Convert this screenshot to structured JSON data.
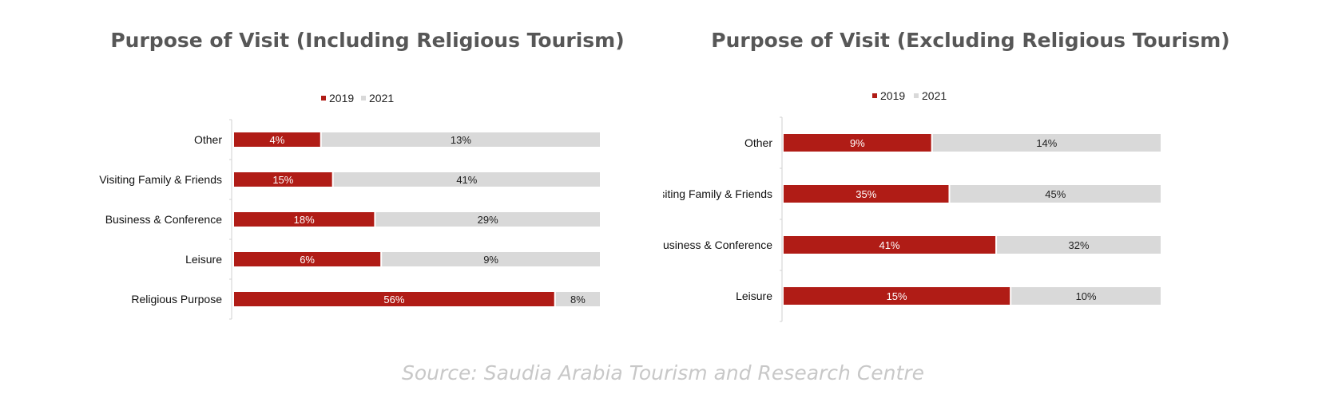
{
  "chart_data": [
    {
      "type": "bar",
      "orientation": "horizontal",
      "stacking": "stacked",
      "title": "Purpose of Visit (Including Religious Tourism)",
      "categories": [
        "Other",
        "Visiting Family & Friends",
        "Business & Conference",
        "Leisure",
        "Religious Purpose"
      ],
      "series": [
        {
          "name": "2019",
          "values": [
            4,
            15,
            18,
            6,
            56
          ],
          "labels": [
            "4%",
            "15%",
            "18%",
            "6%",
            "56%"
          ],
          "color": "#b01c16"
        },
        {
          "name": "2021",
          "values": [
            13,
            41,
            29,
            9,
            8
          ],
          "labels": [
            "13%",
            "41%",
            "29%",
            "9%",
            "8%"
          ],
          "color": "#d9d9d9"
        }
      ],
      "legend": "top-center",
      "grid": false
    },
    {
      "type": "bar",
      "orientation": "horizontal",
      "stacking": "stacked",
      "title": "Purpose of Visit (Excluding Religious Tourism)",
      "categories": [
        "Other",
        "Visiting Family & Friends",
        "Business & Conference",
        "Leisure"
      ],
      "series": [
        {
          "name": "2019",
          "values": [
            9,
            35,
            41,
            15
          ],
          "labels": [
            "9%",
            "35%",
            "41%",
            "15%"
          ],
          "color": "#b01c16"
        },
        {
          "name": "2021",
          "values": [
            14,
            45,
            32,
            10
          ],
          "labels": [
            "14%",
            "45%",
            "32%",
            "10%"
          ],
          "color": "#d9d9d9"
        }
      ],
      "legend": "top-center",
      "grid": false
    }
  ],
  "source": "Source: Saudia Arabia Tourism and Research Centre"
}
